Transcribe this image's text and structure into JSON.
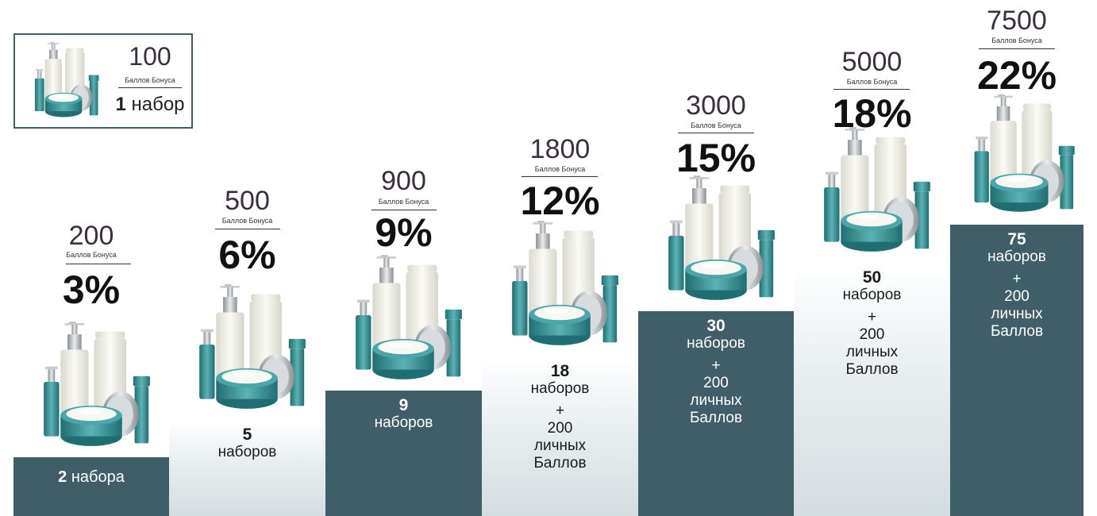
{
  "legend": {
    "points": "100",
    "points_caption": "Баллов Бонуса",
    "kit_count": "1",
    "kit_word": "набор"
  },
  "tiers": [
    {
      "points": "200",
      "caption": "Баллов Бонуса",
      "percent": "3%",
      "count": "2",
      "kits": "набора",
      "plus": "",
      "personal_num": "",
      "personal_word1": "",
      "personal_word2": ""
    },
    {
      "points": "500",
      "caption": "Баллов Бонуса",
      "percent": "6%",
      "count": "5",
      "kits": "наборов",
      "plus": "",
      "personal_num": "",
      "personal_word1": "",
      "personal_word2": ""
    },
    {
      "points": "900",
      "caption": "Баллов Бонуса",
      "percent": "9%",
      "count": "9",
      "kits": "наборов",
      "plus": "",
      "personal_num": "",
      "personal_word1": "",
      "personal_word2": ""
    },
    {
      "points": "1800",
      "caption": "Баллов Бонуса",
      "percent": "12%",
      "count": "18",
      "kits": "наборов",
      "plus": "+",
      "personal_num": "200",
      "personal_word1": "личных",
      "personal_word2": "Баллов"
    },
    {
      "points": "3000",
      "caption": "Баллов Бонуса",
      "percent": "15%",
      "count": "30",
      "kits": "наборов",
      "plus": "+",
      "personal_num": "200",
      "personal_word1": "личных",
      "personal_word2": "Баллов"
    },
    {
      "points": "5000",
      "caption": "Баллов Бонуса",
      "percent": "18%",
      "count": "50",
      "kits": "наборов",
      "plus": "+",
      "personal_num": "200",
      "personal_word1": "личных",
      "personal_word2": "Баллов"
    },
    {
      "points": "7500",
      "caption": "Баллов Бонуса",
      "percent": "22%",
      "count": "75",
      "kits": "наборов",
      "plus": "+",
      "personal_num": "200",
      "personal_word1": "личных",
      "personal_word2": "Баллов"
    }
  ],
  "colors": {
    "step_dark": "#3f5e68",
    "bottle_teal": "#2f8a8c",
    "bottle_white": "#f2f2ec"
  }
}
